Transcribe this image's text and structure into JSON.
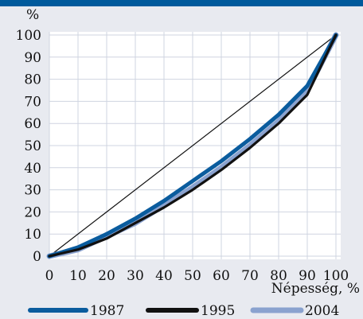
{
  "chart_data": {
    "type": "line",
    "title": "",
    "xlabel": "Népesség, %",
    "ylabel": "%",
    "xlim": [
      0,
      100
    ],
    "ylim": [
      0,
      100
    ],
    "x_ticks": [
      0,
      10,
      20,
      30,
      40,
      50,
      60,
      70,
      80,
      90,
      100
    ],
    "y_ticks": [
      0,
      10,
      20,
      30,
      40,
      50,
      60,
      70,
      80,
      90,
      100
    ],
    "grid": true,
    "legend_position": "bottom",
    "colors": {
      "1987": "#0a5c9e",
      "1995": "#111111",
      "2004": "#8aa2cf",
      "equality": "#111111",
      "grid": "#cfd4e0",
      "top_bar": "#005a9c"
    },
    "equality_line": {
      "x": [
        0,
        100
      ],
      "values": [
        0,
        100
      ]
    },
    "series": [
      {
        "name": "1987",
        "x": [
          0,
          10,
          20,
          30,
          40,
          50,
          60,
          70,
          80,
          90,
          100
        ],
        "values": [
          0,
          4,
          10,
          17,
          25,
          34,
          43,
          53,
          64,
          77,
          100
        ]
      },
      {
        "name": "1995",
        "x": [
          0,
          10,
          20,
          30,
          40,
          50,
          60,
          70,
          80,
          90,
          100
        ],
        "values": [
          0,
          3,
          8,
          15,
          22,
          30,
          39,
          49,
          60,
          73,
          100
        ]
      },
      {
        "name": "2004",
        "x": [
          0,
          10,
          20,
          30,
          40,
          50,
          60,
          70,
          80,
          90,
          100
        ],
        "values": [
          0,
          3,
          9,
          15,
          23,
          31,
          40,
          50,
          61,
          75,
          100
        ]
      }
    ]
  }
}
